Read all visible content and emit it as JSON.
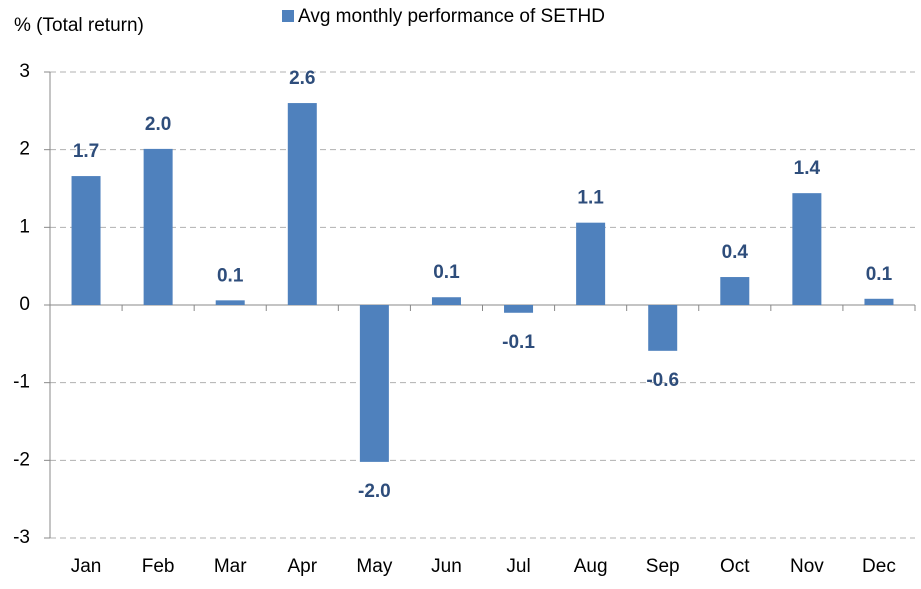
{
  "chart_data": {
    "type": "bar",
    "y_label": "% (Total return)",
    "categories": [
      "Jan",
      "Feb",
      "Mar",
      "Apr",
      "May",
      "Jun",
      "Jul",
      "Aug",
      "Sep",
      "Oct",
      "Nov",
      "Dec"
    ],
    "series": [
      {
        "name": "Avg monthly performance of SETHD",
        "color": "#4f81bd",
        "values": [
          1.66,
          2.01,
          0.06,
          2.6,
          -2.02,
          0.1,
          -0.1,
          1.06,
          -0.59,
          0.36,
          1.44,
          0.08
        ],
        "value_labels": [
          "1.7",
          "2.0",
          "0.1",
          "2.6",
          "-2.0",
          "0.1",
          "-0.1",
          "1.1",
          "-0.6",
          "0.4",
          "1.4",
          "0.1"
        ]
      }
    ],
    "ylim": [
      -3,
      3
    ],
    "yticks": [
      -3,
      -2,
      -1,
      0,
      1,
      2,
      3
    ],
    "grid": true
  }
}
